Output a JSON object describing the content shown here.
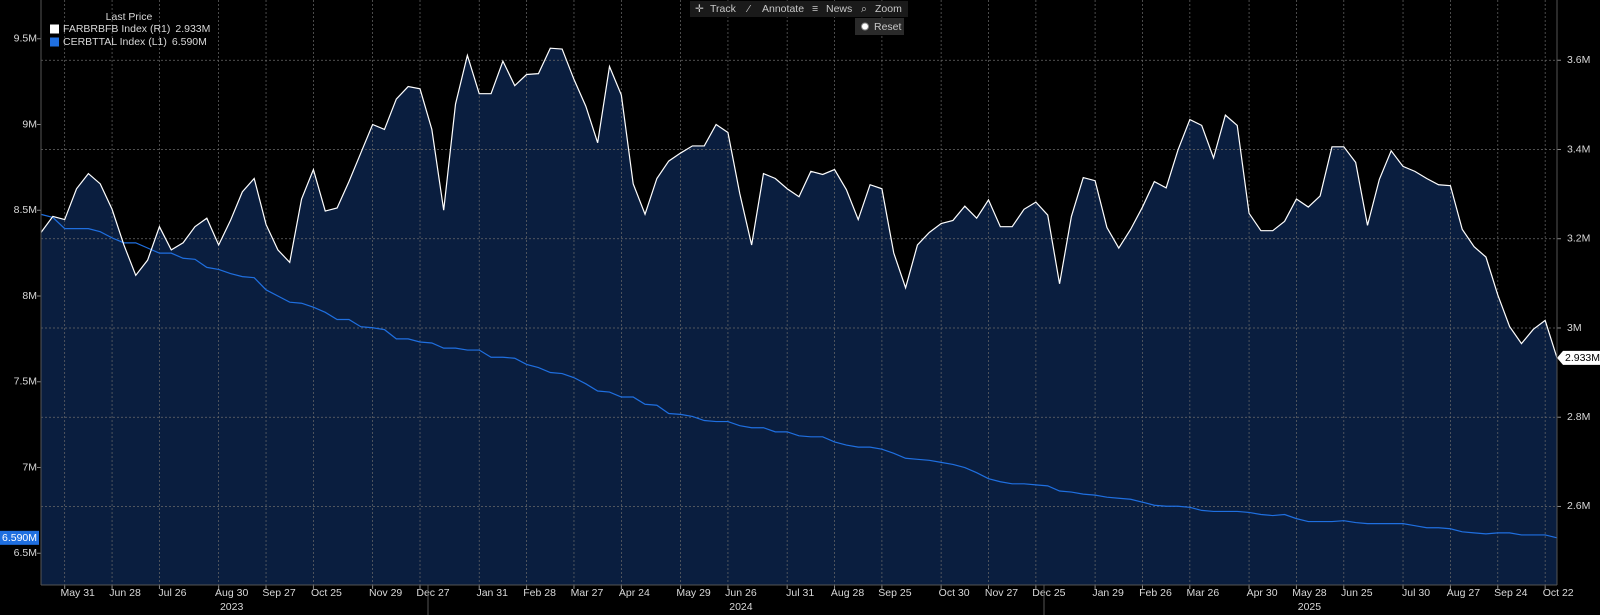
{
  "toolbar": {
    "buttons": [
      "Track",
      "Annotate",
      "News",
      "Zoom"
    ],
    "reset": "Reset"
  },
  "chart_data": {
    "type": "line",
    "legend_title": "Last Price",
    "legend": "upper-left",
    "grid": true,
    "fill_color": "#0b2042",
    "ylim": [
      6.315,
      9.726
    ],
    "yticks": [
      {
        "value": 6.5,
        "label": "6.5M"
      },
      {
        "value": 7,
        "label": "7M"
      },
      {
        "value": 7.5,
        "label": "7.5M"
      },
      {
        "value": 8,
        "label": "8M"
      },
      {
        "value": 8.5,
        "label": "8.5M"
      },
      {
        "value": 9,
        "label": "9M"
      },
      {
        "value": 9.5,
        "label": "9.5M"
      }
    ],
    "y2lim": [
      2.424,
      3.735
    ],
    "y2ticks": [
      {
        "value": 2.6,
        "label": "2.6M"
      },
      {
        "value": 2.8,
        "label": "2.8M"
      },
      {
        "value": 3,
        "label": "3M"
      },
      {
        "value": 3.2,
        "label": "3.2M"
      },
      {
        "value": 3.4,
        "label": "3.4M"
      },
      {
        "value": 3.6,
        "label": "3.6M"
      }
    ],
    "categories": [
      null,
      null,
      "May 31",
      null,
      null,
      null,
      "Jun 28",
      null,
      null,
      null,
      "Jul 26",
      null,
      null,
      null,
      null,
      "Aug 30",
      null,
      null,
      null,
      "Sep 27",
      null,
      null,
      null,
      "Oct 25",
      null,
      null,
      null,
      null,
      "Nov 29",
      null,
      null,
      null,
      "Dec 27",
      null,
      null,
      null,
      null,
      "Jan 31",
      null,
      null,
      null,
      "Feb 28",
      null,
      null,
      null,
      "Mar 27",
      null,
      null,
      null,
      "Apr 24",
      null,
      null,
      null,
      null,
      "May 29",
      null,
      null,
      null,
      "Jun 26",
      null,
      null,
      null,
      null,
      "Jul 31",
      null,
      null,
      null,
      "Aug 28",
      null,
      null,
      null,
      "Sep 25",
      null,
      null,
      null,
      null,
      "Oct 30",
      null,
      null,
      null,
      "Nov 27",
      null,
      null,
      null,
      "Dec 25",
      null,
      null,
      null,
      null,
      "Jan 29",
      null,
      null,
      null,
      "Feb 26",
      null,
      null,
      null,
      "Mar 26",
      null,
      null,
      null,
      null,
      "Apr 30",
      null,
      null,
      null,
      "May 28",
      null,
      null,
      null,
      "Jun 25",
      null,
      null,
      null,
      null,
      "Jul 30",
      null,
      null,
      null,
      "Aug 27",
      null,
      null,
      null,
      "Sep 24",
      null,
      null,
      null,
      "Oct 22",
      null
    ],
    "year_labels": [
      null,
      null,
      null,
      null,
      null,
      null,
      null,
      null,
      null,
      null,
      null,
      null,
      null,
      null,
      null,
      "2023",
      null,
      null,
      null,
      null,
      null,
      null,
      null,
      null,
      null,
      null,
      null,
      null,
      null,
      null,
      null,
      null,
      null,
      null,
      null,
      null,
      null,
      null,
      null,
      null,
      null,
      null,
      null,
      null,
      null,
      null,
      null,
      null,
      null,
      null,
      null,
      null,
      null,
      null,
      null,
      null,
      null,
      null,
      "2024",
      null,
      null,
      null,
      null,
      null,
      null,
      null,
      null,
      null,
      null,
      null,
      null,
      null,
      null,
      null,
      null,
      null,
      null,
      null,
      null,
      null,
      null,
      null,
      null,
      null,
      null,
      null,
      null,
      null,
      null,
      null,
      null,
      null,
      null,
      null,
      null,
      null,
      null,
      null,
      null,
      null,
      null,
      null,
      null,
      null,
      null,
      null,
      "2025",
      null,
      null,
      null,
      null,
      null,
      null,
      null,
      null,
      null,
      null,
      null,
      null,
      null,
      null,
      null,
      null,
      null,
      null,
      null,
      null,
      null,
      null
    ],
    "series": [
      {
        "name": "FARBRBFB Index (R1)",
        "color": "#ffffff",
        "axis": "y2",
        "last_value_label": "2.933M",
        "values": [
          3.214,
          3.25,
          3.243,
          3.312,
          3.346,
          3.323,
          3.266,
          3.186,
          3.118,
          3.152,
          3.227,
          3.175,
          3.191,
          3.227,
          3.246,
          3.186,
          3.241,
          3.305,
          3.335,
          3.232,
          3.175,
          3.147,
          3.289,
          3.355,
          3.262,
          3.269,
          3.328,
          3.392,
          3.456,
          3.445,
          3.513,
          3.541,
          3.536,
          3.445,
          3.264,
          3.502,
          3.611,
          3.525,
          3.525,
          3.598,
          3.543,
          3.568,
          3.57,
          3.627,
          3.625,
          3.557,
          3.497,
          3.415,
          3.586,
          3.522,
          3.323,
          3.255,
          3.335,
          3.374,
          3.392,
          3.408,
          3.408,
          3.456,
          3.438,
          3.301,
          3.186,
          3.346,
          3.335,
          3.312,
          3.294,
          3.351,
          3.344,
          3.355,
          3.31,
          3.243,
          3.321,
          3.312,
          3.168,
          3.09,
          3.186,
          3.214,
          3.234,
          3.241,
          3.273,
          3.246,
          3.287,
          3.227,
          3.227,
          3.266,
          3.282,
          3.253,
          3.099,
          3.25,
          3.337,
          3.33,
          3.225,
          3.179,
          3.221,
          3.271,
          3.328,
          3.314,
          3.399,
          3.467,
          3.454,
          3.381,
          3.477,
          3.454,
          3.257,
          3.218,
          3.218,
          3.239,
          3.289,
          3.271,
          3.296,
          3.406,
          3.406,
          3.371,
          3.23,
          3.333,
          3.397,
          3.362,
          3.351,
          3.335,
          3.321,
          3.319,
          3.221,
          3.182,
          3.159,
          3.074,
          3.003,
          2.965,
          2.997,
          3.017,
          2.933
        ]
      },
      {
        "name": "CERBTTAL Index (L1)",
        "color": "#1f6fe0",
        "axis": "y",
        "last_value_label": "6.590M",
        "values": [
          8.476,
          8.458,
          8.393,
          8.393,
          8.393,
          8.375,
          8.339,
          8.31,
          8.31,
          8.28,
          8.25,
          8.25,
          8.22,
          8.214,
          8.167,
          8.155,
          8.131,
          8.113,
          8.107,
          8.036,
          8.0,
          7.964,
          7.958,
          7.935,
          7.905,
          7.863,
          7.863,
          7.821,
          7.815,
          7.804,
          7.75,
          7.75,
          7.732,
          7.726,
          7.696,
          7.696,
          7.685,
          7.685,
          7.643,
          7.643,
          7.637,
          7.601,
          7.583,
          7.554,
          7.548,
          7.524,
          7.488,
          7.446,
          7.44,
          7.411,
          7.411,
          7.369,
          7.363,
          7.315,
          7.31,
          7.298,
          7.274,
          7.268,
          7.268,
          7.244,
          7.232,
          7.232,
          7.208,
          7.208,
          7.185,
          7.179,
          7.179,
          7.149,
          7.131,
          7.119,
          7.119,
          7.107,
          7.083,
          7.054,
          7.048,
          7.042,
          7.03,
          7.018,
          7.0,
          6.97,
          6.935,
          6.917,
          6.905,
          6.905,
          6.899,
          6.893,
          6.863,
          6.857,
          6.845,
          6.839,
          6.827,
          6.821,
          6.815,
          6.798,
          6.78,
          6.774,
          6.774,
          6.768,
          6.75,
          6.744,
          6.744,
          6.744,
          6.738,
          6.726,
          6.72,
          6.726,
          6.702,
          6.685,
          6.685,
          6.685,
          6.69,
          6.679,
          6.673,
          6.673,
          6.673,
          6.673,
          6.661,
          6.649,
          6.649,
          6.643,
          6.625,
          6.619,
          6.613,
          6.619,
          6.619,
          6.607,
          6.607,
          6.607,
          6.59
        ]
      }
    ]
  }
}
